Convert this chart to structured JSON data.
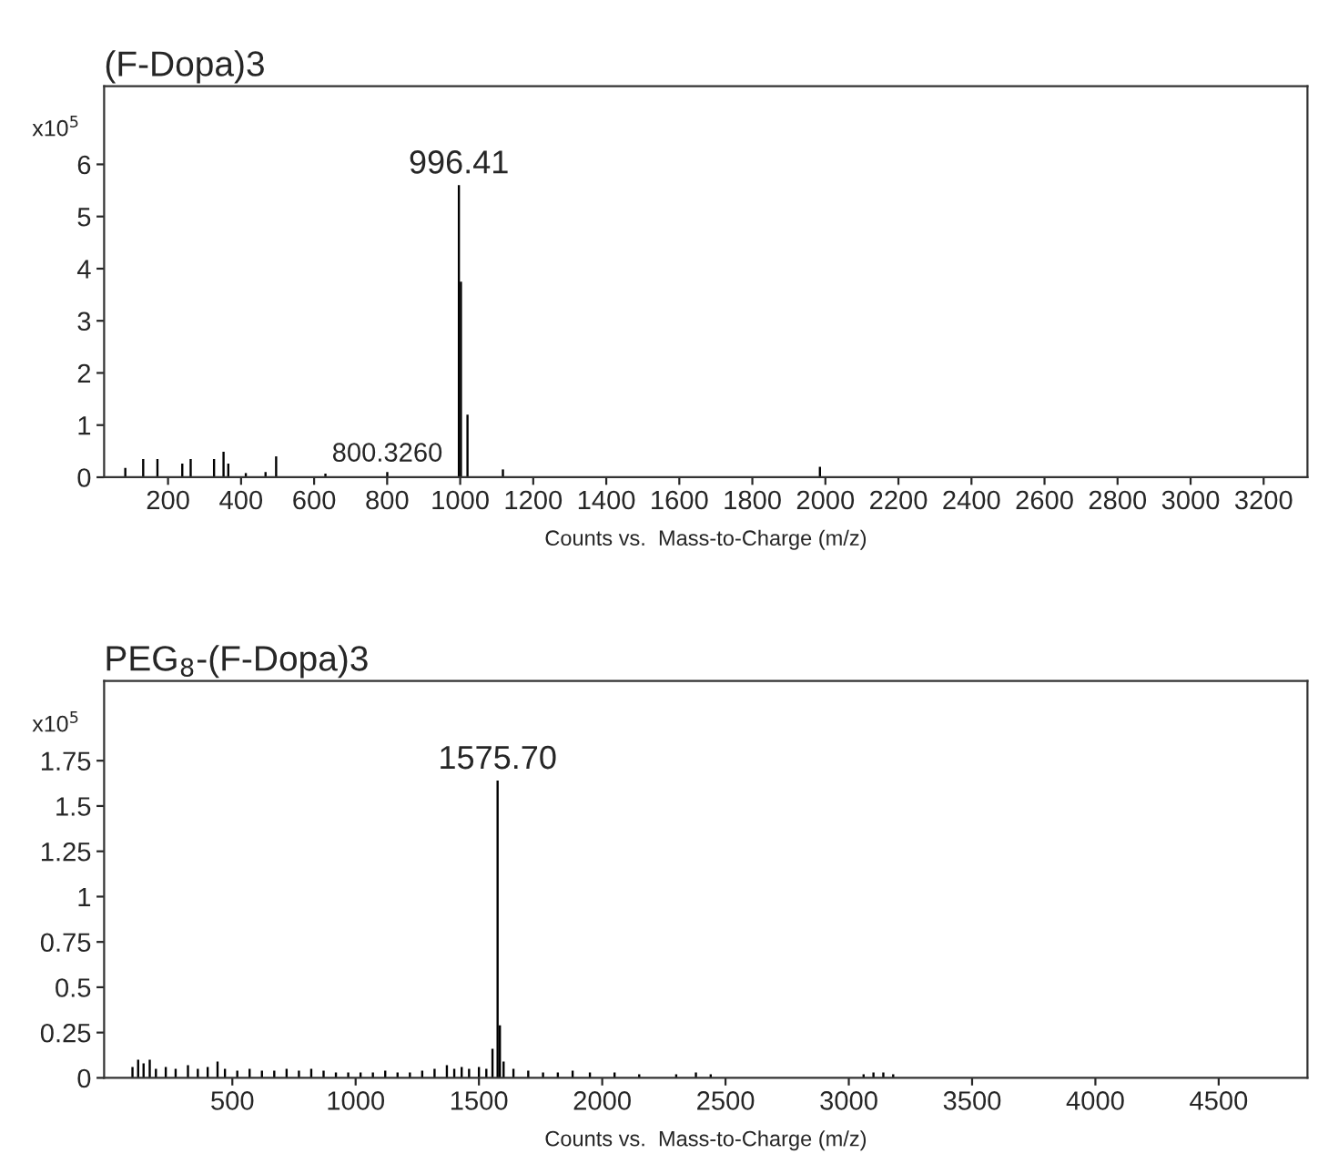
{
  "chart_data": [
    {
      "type": "bar",
      "title": "(F-Dopa)3",
      "xlabel": "Counts vs.  Mass-to-Charge (m/z)",
      "ylabel": "x10$^{5}$",
      "series": [
        {
          "color": "#000000",
          "x": [
            83,
            132,
            171,
            239,
            262,
            326,
            352,
            365,
            413,
            467,
            496,
            631,
            800.326,
            996.41,
            1002,
            1020,
            1117,
            1985
          ],
          "values": [
            0.18,
            0.35,
            0.35,
            0.26,
            0.35,
            0.35,
            0.49,
            0.26,
            0.08,
            0.1,
            0.4,
            0.07,
            0.1,
            5.6,
            3.75,
            1.2,
            0.15,
            0.2
          ]
        }
      ],
      "xlim": [
        25,
        3320
      ],
      "xticks": [
        200,
        400,
        600,
        800,
        1000,
        1200,
        1400,
        1600,
        1800,
        2000,
        2200,
        2400,
        2600,
        2800,
        3000,
        3200
      ],
      "ylim": [
        0,
        7.5
      ],
      "yticks": [
        0,
        1,
        2,
        3,
        4,
        5,
        6
      ],
      "annotations": [
        {
          "text": "996.41",
          "x": 996.41,
          "y": 5.6
        },
        {
          "text": "800.3260",
          "x": 800.326,
          "y": 0.1
        }
      ]
    },
    {
      "type": "bar",
      "title": "PEG$_{8}$-(F-Dopa)3",
      "xlabel": "Counts vs.  Mass-to-Charge (m/z)",
      "ylabel": "x10$^{5}$",
      "series": [
        {
          "color": "#000000",
          "x": [
            95,
            118,
            140,
            165,
            190,
            230,
            270,
            320,
            360,
            400,
            440,
            470,
            520,
            570,
            620,
            670,
            720,
            770,
            820,
            870,
            920,
            970,
            1020,
            1070,
            1120,
            1170,
            1220,
            1270,
            1320,
            1370,
            1400,
            1430,
            1460,
            1500,
            1530,
            1555,
            1575.7,
            1585,
            1600,
            1640,
            1700,
            1760,
            1820,
            1880,
            1950,
            2050,
            2150,
            2300,
            2380,
            2440,
            3060,
            3100,
            3140,
            3180
          ],
          "values": [
            0.06,
            0.1,
            0.08,
            0.1,
            0.05,
            0.06,
            0.05,
            0.07,
            0.05,
            0.06,
            0.09,
            0.05,
            0.04,
            0.05,
            0.04,
            0.04,
            0.05,
            0.04,
            0.05,
            0.04,
            0.03,
            0.03,
            0.03,
            0.03,
            0.04,
            0.03,
            0.03,
            0.04,
            0.05,
            0.07,
            0.05,
            0.06,
            0.05,
            0.06,
            0.05,
            0.16,
            1.64,
            0.29,
            0.09,
            0.05,
            0.04,
            0.03,
            0.03,
            0.04,
            0.03,
            0.03,
            0.02,
            0.02,
            0.03,
            0.02,
            0.02,
            0.03,
            0.03,
            0.02
          ]
        }
      ],
      "xlim": [
        -20,
        4860
      ],
      "xticks": [
        500,
        1000,
        1500,
        2000,
        2500,
        3000,
        3500,
        4000,
        4500
      ],
      "ylim": [
        0,
        2.19
      ],
      "yticks": [
        0,
        0.25,
        0.5,
        0.75,
        1,
        1.25,
        1.5,
        1.75
      ],
      "annotations": [
        {
          "text": "1575.70",
          "x": 1575.7,
          "y": 1.64
        }
      ]
    }
  ]
}
